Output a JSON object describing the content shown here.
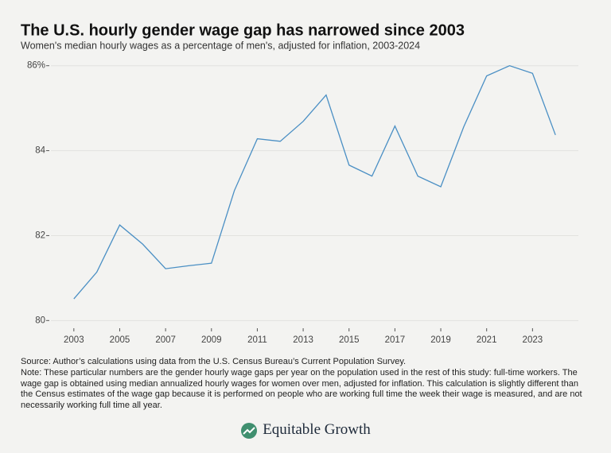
{
  "chart_data": {
    "type": "line",
    "title": "The U.S. hourly gender wage gap has narrowed since 2003",
    "subtitle": "Women's median hourly wages as a percentage of men's, adjusted for inflation, 2003-2024",
    "x": [
      2003,
      2004,
      2005,
      2006,
      2007,
      2008,
      2009,
      2010,
      2011,
      2012,
      2013,
      2014,
      2015,
      2016,
      2017,
      2018,
      2019,
      2020,
      2021,
      2022,
      2023,
      2024
    ],
    "values": [
      80.51,
      81.14,
      82.25,
      81.8,
      81.22,
      81.29,
      81.35,
      83.06,
      84.28,
      84.22,
      84.69,
      85.31,
      83.66,
      83.4,
      84.58,
      83.4,
      83.15,
      84.56,
      85.76,
      86.0,
      85.82,
      84.37
    ],
    "color": "#4a8fc4",
    "xlim": [
      2002,
      2025
    ],
    "xticks": [
      2003,
      2005,
      2007,
      2009,
      2011,
      2013,
      2015,
      2017,
      2019,
      2021,
      2023
    ],
    "ylim": [
      79.8,
      86.2
    ],
    "yticks": [
      80,
      82,
      84,
      {
        "value": 86,
        "label": "86%"
      }
    ],
    "grid": true
  },
  "footer": {
    "source": "Source:  Author’s calculations using data from the U.S. Census Bureau’s Current Population Survey.",
    "note": "Note:  These particular numbers are the gender hourly wage gaps per year on the population used in the rest of this study: full-time workers. The wage gap is obtained using median annualized hourly wages for women over men, adjusted for inflation. This calculation is slightly different than the Census estimates of the wage gap because it is performed on people who are working full time the week their wage is measured, and are not necessarily working full time all year.",
    "brand": "Equitable Growth"
  }
}
